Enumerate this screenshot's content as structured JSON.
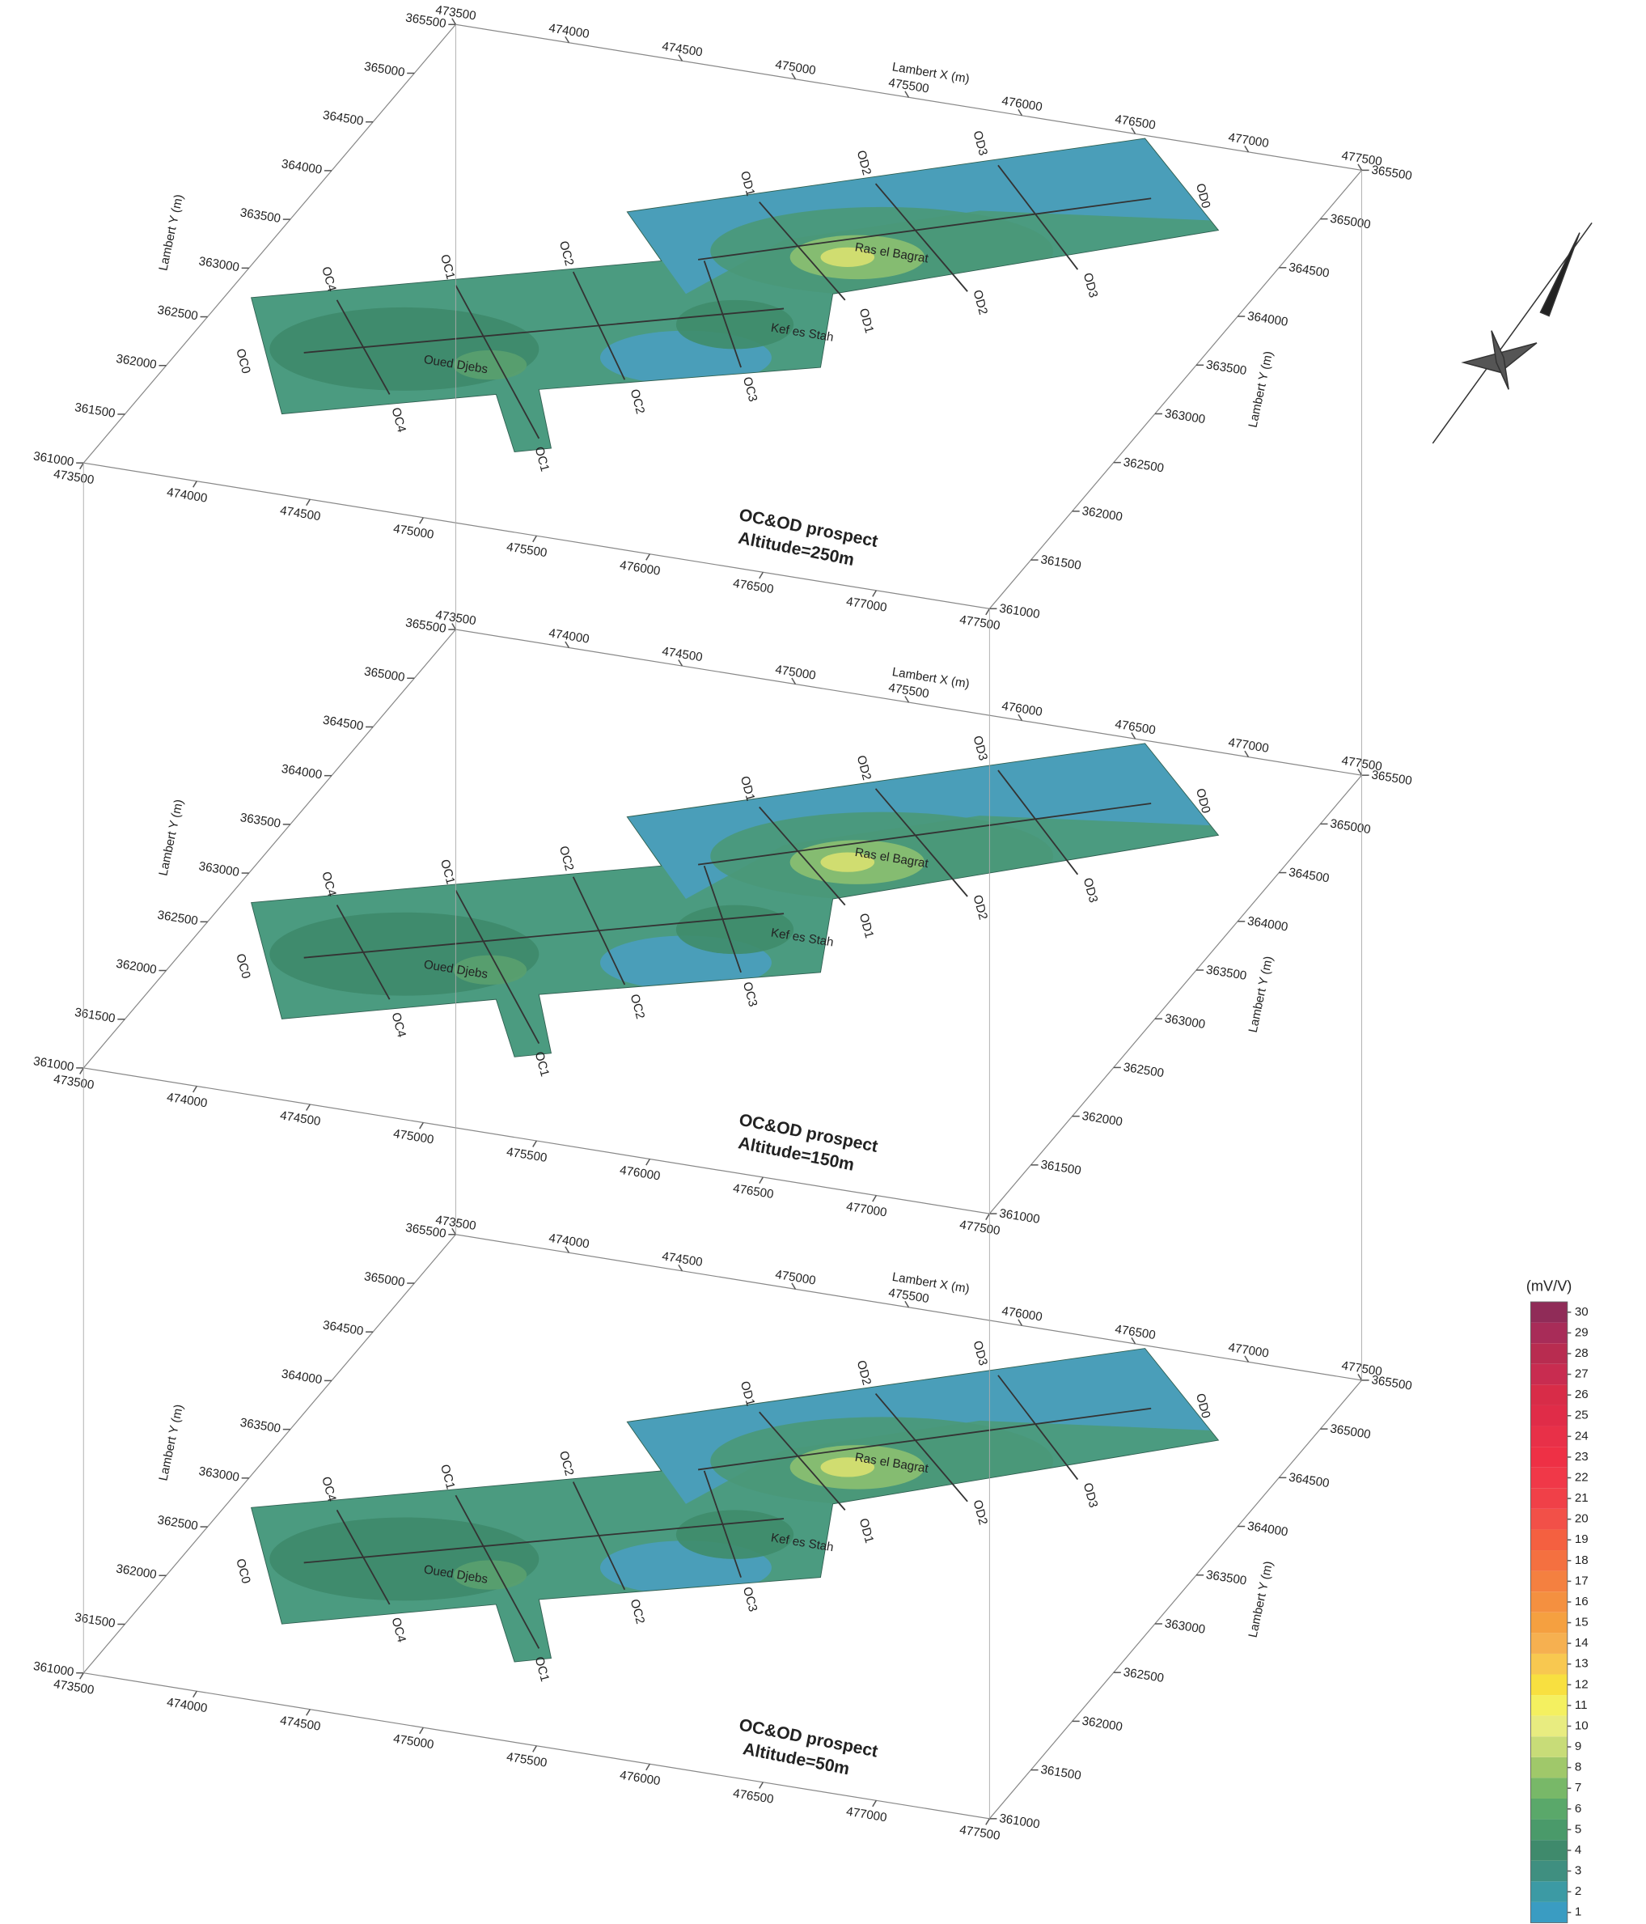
{
  "chart_data": [
    {
      "type": "contour3d",
      "title": "OC&OD prospect",
      "subtitle": "Altitude=250m",
      "xlabel": "Lambert X (m)",
      "ylabel": "Lambert Y (m)",
      "xlim": [
        473500,
        477500
      ],
      "ylim": [
        361000,
        365500
      ],
      "xticks": [
        473500,
        474000,
        474500,
        475000,
        475500,
        476000,
        476500,
        477000,
        477500
      ],
      "yticks": [
        361000,
        361500,
        362000,
        362500,
        363000,
        363500,
        364000,
        364500,
        365000,
        365500
      ],
      "line_labels": [
        "OC0",
        "OC1",
        "OC2",
        "OC3",
        "OC4",
        "OD0",
        "OD1",
        "OD2",
        "OD3"
      ],
      "places": [
        "Oued Djebs",
        "Kef es Stah",
        "Ras el Bagrat"
      ]
    },
    {
      "type": "contour3d",
      "title": "OC&OD prospect",
      "subtitle": "Altitude=150m",
      "xlabel": "Lambert X (m)",
      "ylabel": "Lambert Y (m)",
      "xlim": [
        473500,
        477500
      ],
      "ylim": [
        361000,
        365500
      ],
      "xticks": [
        473500,
        474000,
        474500,
        475000,
        475500,
        476000,
        476500,
        477000,
        477500
      ],
      "yticks": [
        361000,
        361500,
        362000,
        362500,
        363000,
        363500,
        364000,
        364500,
        365000,
        365500
      ],
      "line_labels": [
        "OC0",
        "OC1",
        "OC2",
        "OC3",
        "OC4",
        "OD0",
        "OD1",
        "OD2",
        "OD3"
      ],
      "places": [
        "Oued Djebs",
        "Kef es Stah",
        "Ras el Bagrat"
      ]
    },
    {
      "type": "contour3d",
      "title": "OC&OD prospect",
      "subtitle": "Altitude=50m",
      "xlabel": "Lambert X (m)",
      "ylabel": "Lambert Y (m)",
      "xlim": [
        473500,
        477500
      ],
      "ylim": [
        361000,
        365500
      ],
      "xticks": [
        473500,
        474000,
        474500,
        475000,
        475500,
        476000,
        476500,
        477000,
        477500
      ],
      "yticks": [
        361000,
        361500,
        362000,
        362500,
        363000,
        363500,
        364000,
        364500,
        365000,
        365500
      ],
      "line_labels": [
        "OC0",
        "OC1",
        "OC2",
        "OC3",
        "OC4",
        "OD0",
        "OD1",
        "OD2",
        "OD3"
      ],
      "places": [
        "Oued Djebs",
        "Kef es Stah",
        "Ras el Bagrat"
      ]
    },
    {
      "type": "colorbar",
      "label": "(mV/V)",
      "ylim": [
        0.5,
        30.5
      ],
      "ticks": [
        1,
        2,
        3,
        4,
        5,
        6,
        7,
        8,
        9,
        10,
        11,
        12,
        13,
        14,
        15,
        16,
        17,
        18,
        19,
        20,
        21,
        22,
        23,
        24,
        25,
        26,
        27,
        28,
        29,
        30
      ],
      "colors": [
        "#3a9cc2",
        "#3c9aa4",
        "#3f8f80",
        "#3f8a6c",
        "#4a9a6a",
        "#5aa86a",
        "#78b868",
        "#a0c86a",
        "#c8dc78",
        "#e8ec80",
        "#f4f060",
        "#f8e040",
        "#f8c850",
        "#f6b050",
        "#f5a040",
        "#f49040",
        "#f48040",
        "#f47040",
        "#f46040",
        "#f25048",
        "#f04048",
        "#f03848",
        "#ee3045",
        "#e83048",
        "#e02c48",
        "#d82c48",
        "#c82c50",
        "#b82c50",
        "#a82c58",
        "#902c58"
      ]
    }
  ]
}
